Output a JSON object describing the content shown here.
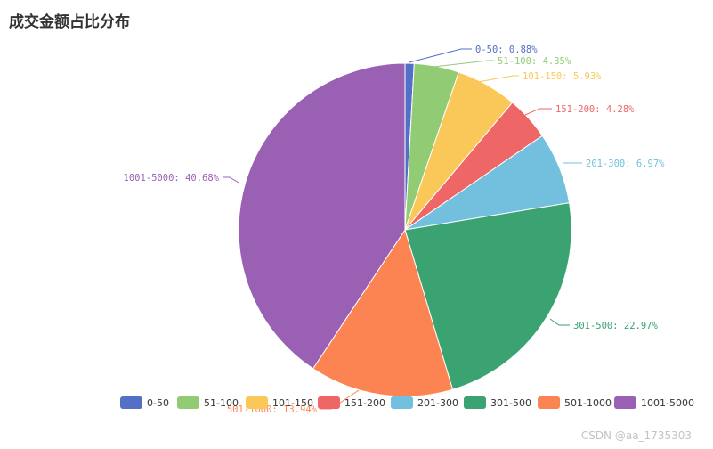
{
  "title": "成交金额占比分布",
  "watermark": "CSDN @aa_1735303",
  "chart_data": {
    "type": "pie",
    "title": "成交金额占比分布",
    "legend_position": "bottom",
    "slices": [
      {
        "name": "0-50",
        "value": 0.88,
        "label": "0-50: 0.88%",
        "color": "#5470c6"
      },
      {
        "name": "51-100",
        "value": 4.35,
        "label": "51-100: 4.35%",
        "color": "#91cc75"
      },
      {
        "name": "101-150",
        "value": 5.93,
        "label": "101-150: 5.93%",
        "color": "#fac858"
      },
      {
        "name": "151-200",
        "value": 4.28,
        "label": "151-200: 4.28%",
        "color": "#ee6666"
      },
      {
        "name": "201-300",
        "value": 6.97,
        "label": "201-300: 6.97%",
        "color": "#73c0de"
      },
      {
        "name": "301-500",
        "value": 22.97,
        "label": "301-500: 22.97%",
        "color": "#3ba272"
      },
      {
        "name": "501-1000",
        "value": 13.94,
        "label": "501-1000: 13.94%",
        "color": "#fc8452"
      },
      {
        "name": "1001-5000",
        "value": 40.68,
        "label": "1001-5000: 40.68%",
        "color": "#9a60b4"
      }
    ]
  }
}
